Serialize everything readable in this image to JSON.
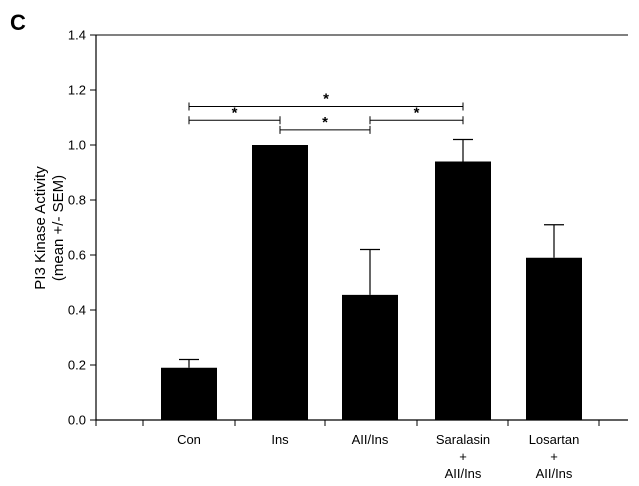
{
  "panel_label": "C",
  "chart_data": {
    "type": "bar",
    "categories": [
      [
        "Con"
      ],
      [
        "Ins"
      ],
      [
        "AII/Ins"
      ],
      [
        "Saralasin",
        "+",
        "AII/Ins"
      ],
      [
        "Losartan",
        "+",
        "AII/Ins"
      ]
    ],
    "values": [
      0.19,
      1.0,
      0.455,
      0.94,
      0.59
    ],
    "errors": [
      0.03,
      0.0,
      0.165,
      0.08,
      0.12
    ],
    "ylabel_lines": [
      "PI3 Kinase Activity",
      "(mean +/- SEM)"
    ],
    "ylim": [
      0,
      1.4
    ],
    "yticks": [
      "0.0",
      "0.2",
      "0.4",
      "0.6",
      "0.8",
      "1.0",
      "1.2",
      "1.4"
    ],
    "bar_color": "#000000",
    "significance": [
      {
        "from": 0,
        "to": 3,
        "label": "*",
        "y": 1.14
      },
      {
        "from": 0,
        "to": 1,
        "label": "*",
        "y": 1.09
      },
      {
        "from": 1,
        "to": 2,
        "label": "*",
        "y": 1.055
      },
      {
        "from": 2,
        "to": 3,
        "label": "*",
        "y": 1.09
      }
    ]
  }
}
